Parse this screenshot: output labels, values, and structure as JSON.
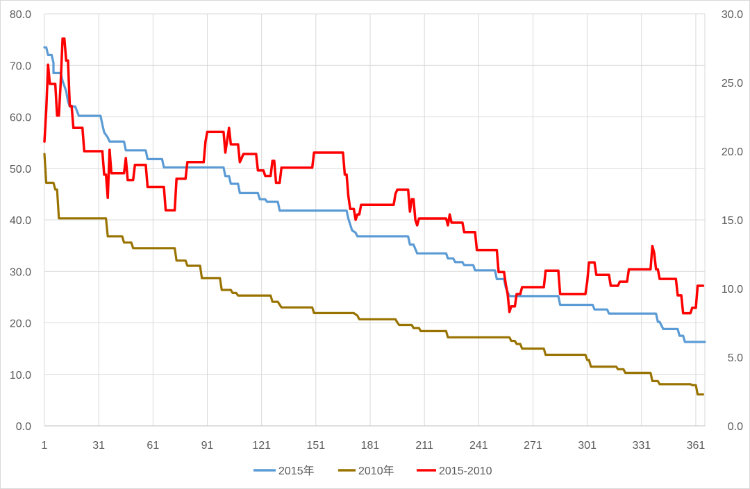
{
  "chart_data": {
    "type": "line",
    "grid": true,
    "legend_position": "bottom",
    "x_ticks": [
      1,
      31,
      61,
      91,
      121,
      151,
      181,
      211,
      241,
      271,
      301,
      331,
      361
    ],
    "x_range": [
      1,
      366
    ],
    "y_left": {
      "range": [
        0,
        80
      ],
      "ticks": [
        "0.0",
        "10.0",
        "20.0",
        "30.0",
        "40.0",
        "50.0",
        "60.0",
        "70.0",
        "80.0"
      ]
    },
    "y_right": {
      "range": [
        0,
        30
      ],
      "ticks": [
        "0.0",
        "5.0",
        "10.0",
        "15.0",
        "20.0",
        "25.0",
        "30.0"
      ]
    },
    "series": [
      {
        "name": "2015年",
        "color": "#5b9bd5",
        "axis": "left",
        "points": [
          [
            1,
            73.5
          ],
          [
            2,
            73.5
          ],
          [
            3,
            72
          ],
          [
            5,
            72
          ],
          [
            6,
            70.5
          ],
          [
            6,
            68.5
          ],
          [
            10,
            68.5
          ],
          [
            11,
            67
          ],
          [
            13,
            65
          ],
          [
            14,
            63
          ],
          [
            15,
            62
          ],
          [
            18,
            62
          ],
          [
            20,
            60.2
          ],
          [
            32,
            60.2
          ],
          [
            33,
            58.5
          ],
          [
            34,
            57
          ],
          [
            36,
            56
          ],
          [
            37,
            55.2
          ],
          [
            45,
            55.2
          ],
          [
            46,
            53.5
          ],
          [
            57,
            53.5
          ],
          [
            58,
            51.8
          ],
          [
            66,
            51.8
          ],
          [
            67,
            50.2
          ],
          [
            100,
            50.2
          ],
          [
            101,
            48.5
          ],
          [
            103,
            48.5
          ],
          [
            104,
            47
          ],
          [
            108,
            47
          ],
          [
            109,
            45.2
          ],
          [
            119,
            45.2
          ],
          [
            120,
            44
          ],
          [
            123,
            44
          ],
          [
            124,
            43.5
          ],
          [
            130,
            43.5
          ],
          [
            131,
            41.8
          ],
          [
            168,
            41.8
          ],
          [
            169,
            40.2
          ],
          [
            171,
            38
          ],
          [
            173,
            37.5
          ],
          [
            174,
            36.8
          ],
          [
            202,
            36.8
          ],
          [
            203,
            35.2
          ],
          [
            205,
            35.2
          ],
          [
            207,
            33.5
          ],
          [
            223,
            33.5
          ],
          [
            224,
            32.5
          ],
          [
            227,
            32.5
          ],
          [
            228,
            31.8
          ],
          [
            232,
            31.8
          ],
          [
            233,
            31.2
          ],
          [
            238,
            31.2
          ],
          [
            239,
            30.2
          ],
          [
            250,
            30.2
          ],
          [
            251,
            28.5
          ],
          [
            255,
            28.5
          ],
          [
            256,
            26.8
          ],
          [
            258,
            25.2
          ],
          [
            285,
            25.2
          ],
          [
            286,
            23.5
          ],
          [
            304,
            23.5
          ],
          [
            305,
            22.6
          ],
          [
            312,
            22.6
          ],
          [
            313,
            21.8
          ],
          [
            339,
            21.8
          ],
          [
            340,
            20.2
          ],
          [
            341,
            20.2
          ],
          [
            343,
            18.8
          ],
          [
            351,
            18.8
          ],
          [
            352,
            17.5
          ],
          [
            354,
            17.5
          ],
          [
            355,
            16.3
          ],
          [
            366,
            16.3
          ]
        ]
      },
      {
        "name": "2010年",
        "color": "#997300",
        "axis": "left",
        "points": [
          [
            1,
            52.8
          ],
          [
            2,
            47.2
          ],
          [
            6,
            47.2
          ],
          [
            7,
            45.9
          ],
          [
            8,
            45.9
          ],
          [
            9,
            40.3
          ],
          [
            35,
            40.3
          ],
          [
            36,
            36.8
          ],
          [
            44,
            36.8
          ],
          [
            45,
            35.6
          ],
          [
            49,
            35.6
          ],
          [
            50,
            34.5
          ],
          [
            73,
            34.5
          ],
          [
            74,
            32.1
          ],
          [
            79,
            32.1
          ],
          [
            80,
            31.1
          ],
          [
            87,
            31.1
          ],
          [
            88,
            28.7
          ],
          [
            98,
            28.7
          ],
          [
            99,
            26.4
          ],
          [
            104,
            26.4
          ],
          [
            105,
            25.8
          ],
          [
            107,
            25.8
          ],
          [
            108,
            25.3
          ],
          [
            126,
            25.3
          ],
          [
            127,
            24.1
          ],
          [
            130,
            24.1
          ],
          [
            132,
            23
          ],
          [
            149,
            23
          ],
          [
            150,
            21.9
          ],
          [
            172,
            21.9
          ],
          [
            174,
            21.4
          ],
          [
            175,
            20.7
          ],
          [
            195,
            20.7
          ],
          [
            196,
            20.1
          ],
          [
            197,
            19.6
          ],
          [
            204,
            19.6
          ],
          [
            205,
            19.0
          ],
          [
            208,
            19.0
          ],
          [
            209,
            18.4
          ],
          [
            223,
            18.4
          ],
          [
            224,
            17.2
          ],
          [
            258,
            17.2
          ],
          [
            259,
            16.5
          ],
          [
            261,
            16.5
          ],
          [
            262,
            15.9
          ],
          [
            264,
            15.9
          ],
          [
            265,
            15
          ],
          [
            277,
            15
          ],
          [
            278,
            13.8
          ],
          [
            300,
            13.8
          ],
          [
            301,
            12.8
          ],
          [
            302,
            12.8
          ],
          [
            303,
            11.5
          ],
          [
            317,
            11.5
          ],
          [
            318,
            11.0
          ],
          [
            321,
            11.0
          ],
          [
            322,
            10.3
          ],
          [
            336,
            10.3
          ],
          [
            337,
            8.7
          ],
          [
            340,
            8.7
          ],
          [
            341,
            8.1
          ],
          [
            358,
            8.1
          ],
          [
            359,
            7.9
          ],
          [
            361,
            7.9
          ],
          [
            362,
            6.1
          ],
          [
            365,
            6.1
          ]
        ]
      },
      {
        "name": "2015-2010",
        "color": "#ff0000",
        "axis": "right",
        "points": [
          [
            1,
            20.7
          ],
          [
            2,
            23
          ],
          [
            3,
            26.3
          ],
          [
            4,
            24.9
          ],
          [
            7,
            24.9
          ],
          [
            8,
            22.6
          ],
          [
            9,
            22.6
          ],
          [
            10,
            25
          ],
          [
            11,
            28.2
          ],
          [
            12,
            28.2
          ],
          [
            13,
            26.6
          ],
          [
            14,
            26.6
          ],
          [
            15,
            23.3
          ],
          [
            16,
            23.3
          ],
          [
            17,
            21.7
          ],
          [
            22,
            21.7
          ],
          [
            23,
            20
          ],
          [
            33,
            20
          ],
          [
            34,
            18.3
          ],
          [
            35,
            18.3
          ],
          [
            36,
            16.6
          ],
          [
            37,
            20.1
          ],
          [
            38,
            18.4
          ],
          [
            45,
            18.4
          ],
          [
            46,
            19.5
          ],
          [
            47,
            17.9
          ],
          [
            50,
            17.9
          ],
          [
            51,
            19
          ],
          [
            57,
            19
          ],
          [
            58,
            17.4
          ],
          [
            67,
            17.4
          ],
          [
            68,
            15.7
          ],
          [
            73,
            15.7
          ],
          [
            74,
            18.0
          ],
          [
            79,
            18.0
          ],
          [
            80,
            19.2
          ],
          [
            89,
            19.2
          ],
          [
            90,
            20.7
          ],
          [
            91,
            21.4
          ],
          [
            100,
            21.4
          ],
          [
            101,
            19.9
          ],
          [
            103,
            21.7
          ],
          [
            104,
            20.5
          ],
          [
            108,
            20.5
          ],
          [
            109,
            19.2
          ],
          [
            111,
            19.8
          ],
          [
            118,
            19.8
          ],
          [
            119,
            18.6
          ],
          [
            122,
            18.6
          ],
          [
            123,
            18.2
          ],
          [
            126,
            18.2
          ],
          [
            127,
            19.3
          ],
          [
            128,
            19.3
          ],
          [
            129,
            17.7
          ],
          [
            131,
            17.7
          ],
          [
            132,
            18.8
          ],
          [
            149,
            18.8
          ],
          [
            150,
            19.9
          ],
          [
            166,
            19.9
          ],
          [
            167,
            18.3
          ],
          [
            168,
            18.3
          ],
          [
            169,
            16.7
          ],
          [
            170,
            15.8
          ],
          [
            172,
            15.8
          ],
          [
            173,
            15
          ],
          [
            174,
            15.4
          ],
          [
            175,
            15.4
          ],
          [
            176,
            16.1
          ],
          [
            194,
            16.1
          ],
          [
            195,
            16.9
          ],
          [
            196,
            17.2
          ],
          [
            202,
            17.2
          ],
          [
            203,
            15.6
          ],
          [
            204,
            16.5
          ],
          [
            205,
            16.5
          ],
          [
            206,
            15
          ],
          [
            207,
            14.6
          ],
          [
            208,
            15.1
          ],
          [
            223,
            15.1
          ],
          [
            224,
            14.6
          ],
          [
            225,
            15.4
          ],
          [
            226,
            14.8
          ],
          [
            232,
            14.8
          ],
          [
            233,
            14.1
          ],
          [
            239,
            14.1
          ],
          [
            240,
            12.8
          ],
          [
            251,
            12.8
          ],
          [
            252,
            11.2
          ],
          [
            255,
            11.2
          ],
          [
            256,
            10.3
          ],
          [
            257,
            9.6
          ],
          [
            258,
            8.3
          ],
          [
            259,
            8.7
          ],
          [
            261,
            8.7
          ],
          [
            262,
            9.6
          ],
          [
            264,
            9.6
          ],
          [
            265,
            10.1
          ],
          [
            277,
            10.1
          ],
          [
            278,
            11.3
          ],
          [
            285,
            11.3
          ],
          [
            286,
            9.6
          ],
          [
            300,
            9.6
          ],
          [
            301,
            10.5
          ],
          [
            302,
            11.9
          ],
          [
            305,
            11.9
          ],
          [
            306,
            11
          ],
          [
            313,
            11
          ],
          [
            314,
            10.2
          ],
          [
            318,
            10.2
          ],
          [
            319,
            10.5
          ],
          [
            323,
            10.5
          ],
          [
            324,
            11.4
          ],
          [
            336,
            11.4
          ],
          [
            337,
            13.1
          ],
          [
            338,
            12.6
          ],
          [
            339,
            11.4
          ],
          [
            340,
            11.4
          ],
          [
            341,
            10.7
          ],
          [
            350,
            10.7
          ],
          [
            351,
            9.5
          ],
          [
            353,
            9.5
          ],
          [
            354,
            8.2
          ],
          [
            358,
            8.2
          ],
          [
            359,
            8.6
          ],
          [
            361,
            8.6
          ],
          [
            362,
            10.2
          ],
          [
            365,
            10.2
          ]
        ]
      }
    ]
  }
}
